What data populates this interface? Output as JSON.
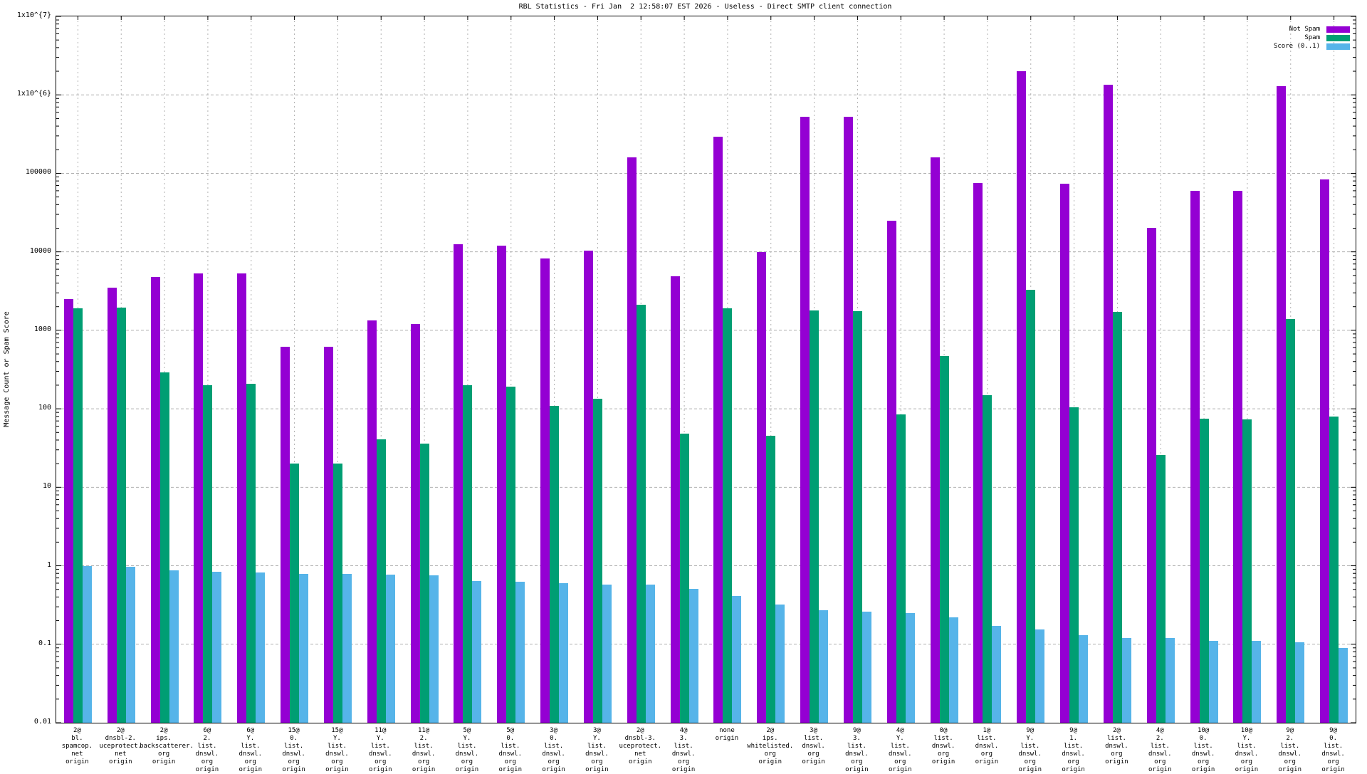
{
  "title": "RBL Statistics - Fri Jan  2 12:58:07 EST 2026 - Useless - Direct SMTP client connection",
  "chart_data": {
    "type": "bar",
    "title": "RBL Statistics - Fri Jan  2 12:58:07 EST 2026 - Useless - Direct SMTP client connection",
    "xlabel": "",
    "ylabel": "Message Count or Spam Score",
    "y_scale": "log",
    "ylim": [
      0.01,
      10000000
    ],
    "grid": true,
    "legend_position": "top-right-inside",
    "ytick_labels": [
      "1x10^{7}",
      "1x10^{6}",
      "100000",
      "10000",
      "1000",
      "100",
      "10",
      "1",
      "0.1",
      "0.01"
    ],
    "ytick_values": [
      10000000,
      1000000,
      100000,
      10000,
      1000,
      100,
      10,
      1,
      0.1,
      0.01
    ],
    "categories": [
      "2@ bl. spamcop. net origin",
      "2@ dnsbl-2. uceprotect. net origin",
      "2@ ips. backscatterer. org origin",
      "6@ 2. list. dnswl. org origin",
      "6@ Y. list. dnswl. org origin",
      "15@ 0. list. dnswl. org origin",
      "15@ Y. list. dnswl. org origin",
      "11@ Y. list. dnswl. org origin",
      "11@ 2. list. dnswl. org origin",
      "5@ Y. list. dnswl. org origin",
      "5@ 0. list. dnswl. org origin",
      "3@ 0. list. dnswl. org origin",
      "3@ Y. list. dnswl. org origin",
      "2@ dnsbl-3. uceprotect. net origin",
      "4@ 3. list. dnswl. org origin",
      "none origin",
      "2@ ips. whitelisted. org origin",
      "3@ list. dnswl. org origin",
      "9@ 3. list. dnswl. org origin",
      "4@ Y. list. dnswl. org origin",
      "0@ list. dnswl. org origin",
      "1@ list. dnswl. org origin",
      "9@ Y. list. dnswl. org origin",
      "9@ 1. list. dnswl. org origin",
      "2@ list. dnswl. org origin",
      "4@ 2. list. dnswl. org origin",
      "10@ 0. list. dnswl. org origin",
      "10@ Y. list. dnswl. org origin",
      "9@ 2. list. dnswl. org origin",
      "9@ 0. list. dnswl. org origin"
    ],
    "series": [
      {
        "name": "Not Spam",
        "color": "#9400d3",
        "values": [
          2500,
          3500,
          4800,
          5300,
          5300,
          620,
          620,
          1340,
          1200,
          12500,
          12000,
          8200,
          10300,
          160000,
          4900,
          290000,
          10000,
          530000,
          530000,
          25000,
          160000,
          76000,
          2000000,
          74000,
          1350000,
          20000,
          60000,
          60000,
          1300000,
          83000
        ]
      },
      {
        "name": "Spam",
        "color": "#009e73",
        "values": [
          1900,
          1950,
          290,
          200,
          210,
          20,
          20,
          41,
          36,
          200,
          190,
          110,
          133,
          2100,
          48,
          1900,
          45,
          1800,
          1750,
          85,
          470,
          150,
          3300,
          105,
          1700,
          26,
          75,
          74,
          1400,
          80
        ]
      },
      {
        "name": "Score (0..1)",
        "color": "#56b4e9",
        "values": [
          1.0,
          0.98,
          0.88,
          0.83,
          0.82,
          0.79,
          0.78,
          0.77,
          0.76,
          0.64,
          0.62,
          0.6,
          0.58,
          0.57,
          0.51,
          0.41,
          0.32,
          0.27,
          0.26,
          0.25,
          0.22,
          0.17,
          0.155,
          0.13,
          0.12,
          0.12,
          0.11,
          0.11,
          0.105,
          0.09
        ]
      }
    ],
    "style": {
      "grid_color": "#b0b0b0",
      "axis_color": "#000000",
      "background": "#ffffff"
    }
  }
}
